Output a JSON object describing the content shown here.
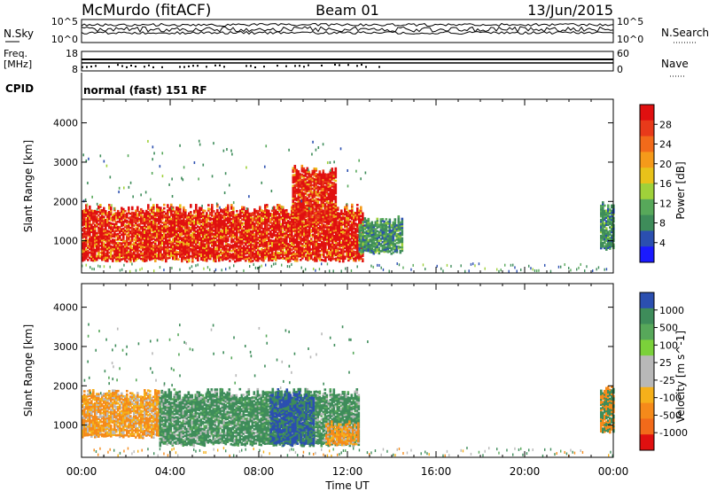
{
  "header": {
    "station": "McMurdo (fitACF)",
    "beam": "Beam 01",
    "date": "13/Jun/2015"
  },
  "strip": {
    "nsky": "N.Sky",
    "nsearch": "N.Search",
    "freq": "Freq.",
    "freq_unit": "[MHz]",
    "nave": "Nave",
    "cpid": "CPID",
    "program": "normal (fast) 151 RF",
    "noise_ticks_left": [
      "10^5",
      "10^0"
    ],
    "noise_ticks_right": [
      "10^5",
      "10^0"
    ],
    "freq_ticks": [
      "18",
      "8"
    ],
    "nave_ticks": [
      "60",
      "0"
    ]
  },
  "colors": {
    "power": [
      "#1a1aff",
      "#2b4fb0",
      "#3e8c5a",
      "#57a85a",
      "#9fd13a",
      "#e8c21a",
      "#f59a1a",
      "#f26a1a",
      "#e83a1a",
      "#e01010"
    ],
    "velocity_pos": [
      "#2b4fb0",
      "#3e8c5a",
      "#57a85a",
      "#7bd13a"
    ],
    "velocity_neg": [
      "#f5b01a",
      "#f58a1a",
      "#f26a1a",
      "#e01010"
    ],
    "gray": "#b8b8b8"
  },
  "chart_data": [
    {
      "type": "heatmap",
      "title": "Power",
      "xlabel": "Time UT",
      "ylabel": "Slant Range [km]",
      "xlim": [
        "00:00",
        "24:00"
      ],
      "ylim": [
        180,
        4600
      ],
      "x_ticks": [
        "00:00",
        "04:00",
        "08:00",
        "12:00",
        "16:00",
        "20:00",
        "00:00"
      ],
      "y_ticks": [
        1000,
        2000,
        3000,
        4000
      ],
      "colorbar": {
        "label": "Power [dB]",
        "ticks": [
          "28",
          "24",
          "20",
          "16",
          "12",
          "8",
          "4"
        ],
        "range": [
          0,
          30
        ]
      },
      "regions": [
        {
          "t0": 0.0,
          "t1": 12.7,
          "r0": 500,
          "r1": 1800,
          "value": "high"
        },
        {
          "t0": 9.5,
          "t1": 11.5,
          "r0": 1500,
          "r1": 2800,
          "value": "high"
        },
        {
          "t0": 12.5,
          "t1": 14.5,
          "r0": 700,
          "r1": 1500,
          "value": "medium"
        },
        {
          "t0": 23.4,
          "t1": 24.0,
          "r0": 800,
          "r1": 1900,
          "value": "medium"
        }
      ]
    },
    {
      "type": "heatmap",
      "title": "Velocity",
      "xlabel": "Time UT",
      "ylabel": "Slant Range [km]",
      "xlim": [
        "00:00",
        "24:00"
      ],
      "ylim": [
        180,
        4600
      ],
      "x_ticks": [
        "00:00",
        "04:00",
        "08:00",
        "12:00",
        "16:00",
        "20:00",
        "00:00"
      ],
      "y_ticks": [
        1000,
        2000,
        3000,
        4000
      ],
      "colorbar": {
        "label": "Velocity [m s^-1]",
        "ticks": [
          "1000",
          "500",
          "100",
          "25",
          "-25",
          "-100",
          "-500",
          "-1000"
        ],
        "range": [
          -1000,
          1000
        ]
      },
      "regions": [
        {
          "t0": 0.0,
          "t1": 3.5,
          "r0": 700,
          "r1": 1800,
          "value": "negative"
        },
        {
          "t0": 3.5,
          "t1": 12.5,
          "r0": 500,
          "r1": 1800,
          "value": "positive-low"
        },
        {
          "t0": 8.5,
          "t1": 10.5,
          "r0": 500,
          "r1": 1800,
          "value": "positive-high"
        },
        {
          "t0": 11.0,
          "t1": 12.5,
          "r0": 500,
          "r1": 1000,
          "value": "negative"
        },
        {
          "t0": 23.4,
          "t1": 24.0,
          "r0": 800,
          "r1": 1900,
          "value": "mixed"
        }
      ]
    }
  ]
}
